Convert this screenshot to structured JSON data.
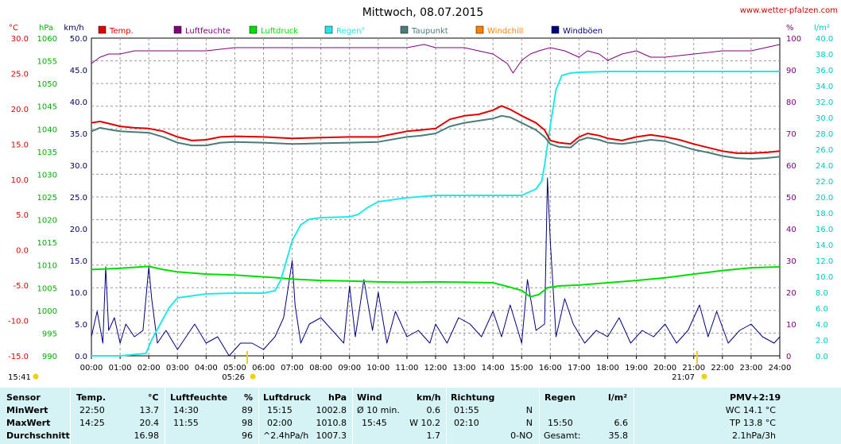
{
  "header": {
    "title": "Mittwoch, 08.07.2015",
    "site": "www.wetter-pfalzen.com"
  },
  "colors": {
    "temp": "#e00000",
    "humidity": "#800080",
    "pressure": "#00dd00",
    "rain": "#22e8e8",
    "dewpoint": "#4a7c78",
    "windchill": "#ff8000",
    "gust": "#000080",
    "table_bg": "#d5f2f4"
  },
  "chart_data": {
    "type": "line",
    "axes": {
      "temp": {
        "unit": "°C",
        "range": [
          -15,
          30
        ],
        "ticks": [
          "30.0",
          "25.0",
          "20.0",
          "15.0",
          "10.0",
          "5.0",
          "0.0",
          "-5.0",
          "-10.0",
          "-15.0"
        ]
      },
      "pressure": {
        "unit": "hPa",
        "range": [
          990,
          1060
        ],
        "ticks": [
          "1060",
          "1055",
          "1050",
          "1045",
          "1040",
          "1035",
          "1030",
          "1025",
          "1020",
          "1015",
          "1010",
          "1005",
          "1000",
          "995",
          "990"
        ]
      },
      "wind": {
        "unit": "km/h",
        "range": [
          0,
          50
        ],
        "ticks": [
          "50.0",
          "45.0",
          "40.0",
          "35.0",
          "30.0",
          "25.0",
          "20.0",
          "15.0",
          "10.0",
          "5.0",
          "0.0"
        ]
      },
      "humidity": {
        "unit": "%",
        "range": [
          0,
          100
        ],
        "ticks": [
          "100",
          "90",
          "80",
          "70",
          "60",
          "50",
          "40",
          "30",
          "20",
          "10",
          "0"
        ]
      },
      "rain": {
        "unit": "l/m²",
        "range": [
          0,
          40
        ],
        "ticks": [
          "40.0",
          "38.0",
          "36.0",
          "34.0",
          "32.0",
          "30.0",
          "28.0",
          "26.0",
          "24.0",
          "22.0",
          "20.0",
          "18.0",
          "16.0",
          "14.0",
          "12.0",
          "10.0",
          "8.0",
          "6.0",
          "4.0",
          "2.0",
          "0.0"
        ]
      }
    },
    "x_ticks": [
      "00:00",
      "01:00",
      "02:00",
      "03:00",
      "04:00",
      "05:00",
      "06:00",
      "07:00",
      "08:00",
      "09:00",
      "10:00",
      "11:00",
      "12:00",
      "13:00",
      "14:00",
      "15:00",
      "16:00",
      "17:00",
      "18:00",
      "19:00",
      "20:00",
      "21:00",
      "22:00",
      "23:00",
      "24:00"
    ],
    "sun": {
      "sunrise": "05:26",
      "sunset": "21:07",
      "daylength": "15:41"
    },
    "legend": [
      "Temp.",
      "Luftfeuchte",
      "Luftdruck",
      "Regen°",
      "Taupunkt",
      "Windchill",
      "Windböen"
    ],
    "grid": true,
    "series": [
      {
        "name": "Temp.",
        "axis": "temp",
        "x": [
          0,
          0.3,
          0.7,
          1.0,
          1.5,
          2.0,
          2.5,
          3.0,
          3.5,
          4.0,
          4.5,
          5.0,
          6.0,
          7.0,
          8.0,
          9.0,
          10.0,
          11.0,
          11.5,
          12.0,
          12.5,
          13.0,
          13.5,
          14.0,
          14.3,
          14.6,
          15.0,
          15.5,
          15.8,
          16.0,
          16.3,
          16.7,
          17.0,
          17.3,
          17.7,
          18.0,
          18.5,
          19.0,
          19.5,
          20.0,
          20.5,
          21.0,
          21.5,
          22.0,
          22.5,
          23.0,
          23.5,
          24.0
        ],
        "y": [
          18.0,
          18.2,
          17.8,
          17.5,
          17.3,
          17.2,
          16.8,
          16.0,
          15.5,
          15.6,
          16.0,
          16.1,
          16.0,
          15.8,
          15.9,
          16.0,
          16.0,
          16.8,
          17.0,
          17.2,
          18.5,
          19.0,
          19.2,
          19.8,
          20.4,
          19.9,
          19.0,
          18.0,
          17.0,
          15.5,
          15.2,
          15.0,
          16.0,
          16.5,
          16.2,
          15.8,
          15.5,
          16.0,
          16.3,
          16.0,
          15.6,
          15.0,
          14.5,
          14.0,
          13.7,
          13.7,
          13.8,
          14.0
        ]
      },
      {
        "name": "Luftfeuchte",
        "axis": "humidity",
        "x": [
          0,
          0.3,
          0.6,
          1.0,
          1.5,
          2.0,
          3.0,
          4.0,
          5.0,
          6.0,
          7.0,
          8.0,
          9.0,
          10.0,
          11.0,
          11.6,
          12.0,
          13.0,
          13.5,
          14.0,
          14.5,
          14.7,
          15.0,
          15.3,
          15.6,
          16.0,
          16.5,
          17.0,
          17.3,
          17.7,
          18.0,
          18.5,
          19.0,
          19.5,
          20.0,
          21.0,
          22.0,
          22.5,
          23.0,
          23.5,
          24.0
        ],
        "y": [
          92,
          94,
          95,
          95,
          96,
          96,
          96,
          96,
          97,
          97,
          97,
          97,
          97,
          97,
          97,
          98,
          97,
          97,
          96,
          95,
          92,
          89,
          93,
          95,
          96,
          97,
          96,
          94,
          96,
          95,
          93,
          95,
          96,
          94,
          94,
          95,
          96,
          96,
          96,
          97,
          98
        ]
      },
      {
        "name": "Luftdruck",
        "axis": "pressure",
        "x": [
          0,
          1.0,
          2.0,
          2.5,
          3.0,
          4.0,
          5.0,
          6.0,
          6.5,
          7.0,
          8.0,
          9.0,
          10.0,
          11.0,
          12.0,
          13.0,
          14.0,
          14.5,
          15.0,
          15.3,
          15.6,
          15.9,
          16.3,
          17.0,
          18.0,
          19.0,
          20.0,
          21.0,
          22.0,
          23.0,
          24.0
        ],
        "y": [
          1009.0,
          1009.3,
          1009.7,
          1009.0,
          1008.5,
          1008.0,
          1007.8,
          1007.4,
          1007.2,
          1006.9,
          1006.6,
          1006.5,
          1006.3,
          1006.2,
          1006.3,
          1006.2,
          1006.1,
          1005.3,
          1004.4,
          1003.0,
          1003.5,
          1005.0,
          1005.4,
          1005.6,
          1006.1,
          1006.6,
          1007.2,
          1008.0,
          1008.8,
          1009.4,
          1009.6
        ]
      },
      {
        "name": "Regen°",
        "axis": "rain",
        "x": [
          0,
          1.0,
          1.9,
          2.1,
          2.4,
          2.7,
          3.0,
          4.0,
          5.0,
          6.0,
          6.4,
          6.6,
          6.8,
          7.0,
          7.3,
          7.6,
          8.0,
          9.0,
          9.3,
          9.6,
          9.9,
          10.0,
          11.0,
          12.0,
          13.0,
          14.0,
          15.0,
          15.5,
          15.7,
          15.8,
          16.0,
          16.2,
          16.4,
          16.7,
          17.0,
          18.0,
          19.0,
          20.0,
          21.0,
          22.0,
          23.0,
          24.0
        ],
        "y": [
          0.0,
          0.0,
          0.3,
          2.0,
          4.0,
          6.0,
          7.3,
          7.8,
          7.9,
          7.9,
          8.2,
          9.5,
          12.0,
          14.5,
          16.5,
          17.2,
          17.4,
          17.5,
          17.8,
          18.6,
          19.2,
          19.4,
          19.9,
          20.2,
          20.2,
          20.2,
          20.2,
          21.0,
          22.0,
          24.0,
          29.0,
          33.5,
          35.3,
          35.6,
          35.7,
          35.8,
          35.8,
          35.8,
          35.8,
          35.8,
          35.8,
          35.8
        ]
      },
      {
        "name": "Taupunkt",
        "axis": "temp",
        "x": [
          0,
          0.3,
          0.7,
          1.0,
          1.5,
          2.0,
          2.5,
          3.0,
          3.5,
          4.0,
          4.5,
          5.0,
          6.0,
          7.0,
          8.0,
          9.0,
          10.0,
          11.0,
          11.5,
          12.0,
          12.5,
          13.0,
          13.5,
          14.0,
          14.3,
          14.6,
          15.0,
          15.5,
          15.8,
          16.0,
          16.3,
          16.7,
          17.0,
          17.3,
          17.7,
          18.0,
          18.5,
          19.0,
          19.5,
          20.0,
          20.5,
          21.0,
          21.5,
          22.0,
          22.5,
          23.0,
          23.5,
          24.0
        ],
        "y": [
          16.8,
          17.3,
          17.0,
          16.8,
          16.7,
          16.6,
          16.0,
          15.2,
          14.8,
          14.8,
          15.2,
          15.3,
          15.2,
          15.0,
          15.1,
          15.2,
          15.3,
          16.0,
          16.2,
          16.5,
          17.5,
          18.0,
          18.3,
          18.6,
          19.0,
          18.8,
          18.0,
          17.0,
          16.0,
          15.0,
          14.6,
          14.5,
          15.5,
          15.9,
          15.6,
          15.2,
          15.0,
          15.3,
          15.6,
          15.4,
          14.8,
          14.2,
          13.8,
          13.3,
          13.0,
          12.9,
          13.0,
          13.2
        ]
      },
      {
        "name": "Windböen",
        "axis": "wind",
        "x": [
          0,
          0.2,
          0.4,
          0.5,
          0.6,
          0.8,
          1.0,
          1.2,
          1.5,
          1.8,
          2.0,
          2.1,
          2.3,
          2.6,
          3.0,
          3.3,
          3.6,
          4.0,
          4.4,
          4.8,
          5.2,
          5.6,
          6.0,
          6.4,
          6.7,
          7.0,
          7.1,
          7.3,
          7.6,
          8.0,
          8.4,
          8.8,
          9.0,
          9.2,
          9.5,
          9.8,
          10.0,
          10.3,
          10.6,
          11.0,
          11.4,
          11.8,
          12.0,
          12.4,
          12.8,
          13.2,
          13.6,
          14.0,
          14.3,
          14.6,
          15.0,
          15.2,
          15.5,
          15.8,
          15.9,
          16.0,
          16.2,
          16.5,
          16.8,
          17.2,
          17.6,
          18.0,
          18.4,
          18.8,
          19.2,
          19.6,
          20.0,
          20.4,
          20.8,
          21.2,
          21.5,
          21.8,
          22.2,
          22.6,
          23.0,
          23.4,
          23.8,
          24.0
        ],
        "y": [
          3,
          7,
          2,
          14,
          4,
          6,
          2,
          5,
          3,
          4,
          14,
          9,
          2,
          4,
          1,
          3,
          5,
          2,
          3,
          0,
          2,
          2,
          1,
          3,
          6,
          15,
          8,
          2,
          5,
          6,
          4,
          2,
          11,
          3,
          12,
          4,
          10,
          2,
          7,
          3,
          4,
          2,
          5,
          2,
          6,
          5,
          3,
          7,
          3,
          8,
          2,
          12,
          4,
          5,
          28,
          18,
          3,
          9,
          5,
          2,
          4,
          3,
          6,
          2,
          4,
          3,
          5,
          2,
          4,
          8,
          3,
          7,
          2,
          4,
          5,
          3,
          2,
          3
        ]
      }
    ]
  },
  "table": {
    "headers": {
      "sensor": "Sensor",
      "temp": "Temp.",
      "temp_unit": "°C",
      "hum": "Luftfeuchte",
      "hum_unit": "%",
      "press": "Luftdruck",
      "press_unit": "hPa",
      "wind": "Wind",
      "wind_unit": "km/h",
      "dir": "Richtung",
      "rain": "Regen",
      "rain_unit": "l/m²",
      "pmv": "PMV+2:19"
    },
    "row_labels": {
      "min": "MinWert",
      "max": "MaxWert",
      "avg": "Durchschnitt"
    },
    "min": {
      "temp_time": "22:50",
      "temp": "13.7",
      "hum_time": "14:30",
      "hum": "89",
      "press_time": "15:15",
      "press": "1002.8",
      "wind_time": "Ø 10 min.",
      "wind": "0.6",
      "dir_time": "01:55",
      "dir": "N",
      "pmv": "WC 14.1 °C"
    },
    "max": {
      "temp_time": "14:25",
      "temp": "20.4",
      "hum_time": "11:55",
      "hum": "98",
      "press_time": "02:00",
      "press": "1010.8",
      "wind_time": "15:45",
      "wind": "W 10.2",
      "dir_time": "02:10",
      "dir": "N",
      "rain_time": "15:50",
      "rain": "6.6",
      "pmv": "TP 13.8 °C"
    },
    "avg": {
      "temp": "16.98",
      "hum": "96",
      "press_time": "^2.4hPa/h",
      "press": "1007.3",
      "wind": "1.7",
      "dir": "0-NO",
      "rain_label": "Gesamt:",
      "rain": "35.8",
      "pmv": "2.1hPa/3h"
    }
  }
}
